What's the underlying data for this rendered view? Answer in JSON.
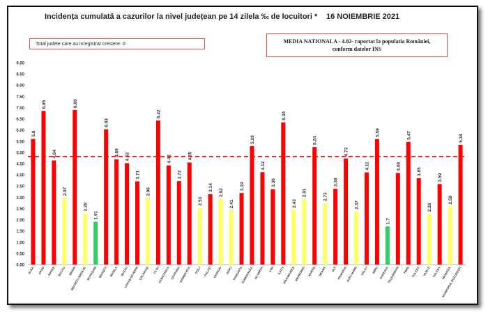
{
  "title": "Incidența cumulată a cazurilor la nivel județean pe 14 zilela ‰ de locuitori *",
  "date": "16 NOIEMBRIE 2021",
  "counter_text": "Total judete care au inregistrat crestere: 0",
  "media_line1": "MEDIA NATIONALA  - 4.82-  raportat la populatia României,",
  "media_line2": "conform datelor INS",
  "colors": {
    "red": "#ff0000",
    "yellow": "#ffff66",
    "green": "#33cc66",
    "reference": "#ff0000"
  },
  "chart_data": {
    "type": "bar",
    "ylim": [
      0,
      9
    ],
    "yticks": [
      "0.00",
      "0.50",
      "1.00",
      "1.50",
      "2.00",
      "2.50",
      "3.00",
      "3.50",
      "4.00",
      "4.50",
      "5.00",
      "5.50",
      "6.00",
      "6.50",
      "7.00",
      "7.50",
      "8.00",
      "8.50",
      "9.00"
    ],
    "reference_line": 4.82,
    "categories": [
      "ALBA",
      "ARAD",
      "ARGEȘ",
      "BACĂU",
      "BIHOR",
      "BISTRIȚA-NĂSĂUD",
      "BOTOȘANI",
      "BRAȘOV",
      "BRĂILA",
      "BUZĂU",
      "CARAȘ-SEVERIN",
      "CĂLĂRAȘI",
      "CLUJ",
      "CONSTANȚA",
      "COVASNA",
      "DÂMBOVIȚA",
      "DOLJ",
      "GALAȚI",
      "GIURGIU",
      "GORJ",
      "HARGHITA",
      "HUNEDOARA",
      "IALOMIȚA",
      "IAȘI",
      "ILFOV",
      "MARAMUREȘ",
      "MEHEDINȚI",
      "MUREȘ",
      "NEAMȚ",
      "OLT",
      "PRAHOVA",
      "SATU MARE",
      "SĂLAJ",
      "SIBIU",
      "SUCEAVA",
      "TELEORMAN",
      "TIMIȘ",
      "TULCEA",
      "VASLUI",
      "VÂLCEA",
      "VRANCEA",
      "MUNICIPIUL BUCUREȘTI"
    ],
    "values": [
      5.6,
      6.85,
      4.64,
      2.97,
      6.89,
      2.28,
      1.91,
      6.03,
      4.69,
      4.52,
      3.71,
      2.96,
      6.42,
      4.42,
      3.72,
      4.55,
      2.53,
      3.14,
      2.92,
      2.41,
      3.19,
      5.28,
      4.12,
      3.36,
      6.34,
      2.43,
      2.91,
      5.24,
      2.73,
      3.38,
      4.73,
      2.37,
      4.11,
      5.59,
      1.7,
      4.08,
      5.47,
      3.85,
      2.26,
      3.59,
      2.59,
      5.34
    ],
    "value_labels": [
      "5.6",
      "6.85",
      "4.64",
      "2.97",
      "6.89",
      "2.28",
      "1.91",
      "6.03",
      "4.69",
      "4.52",
      "3.71",
      "2.96",
      "6.42",
      "4.42",
      "3.72",
      "4.55",
      "2.53",
      "3.14",
      "2.92",
      "2.41",
      "3.19",
      "5.28",
      "4.12",
      "3.36",
      "6.34",
      "2.43",
      "2.91",
      "5.24",
      "2.73",
      "3.38",
      "4.73",
      "2.37",
      "4.11",
      "5.59",
      "1.7",
      "4.08",
      "5.47",
      "3.85",
      "2.26",
      "3.59",
      "2.59",
      "5.34"
    ],
    "bar_colors": [
      "red",
      "red",
      "red",
      "yellow",
      "red",
      "yellow",
      "green",
      "red",
      "red",
      "red",
      "red",
      "yellow",
      "red",
      "red",
      "red",
      "red",
      "yellow",
      "red",
      "yellow",
      "yellow",
      "red",
      "red",
      "red",
      "red",
      "red",
      "yellow",
      "yellow",
      "red",
      "yellow",
      "red",
      "red",
      "yellow",
      "red",
      "red",
      "green",
      "red",
      "red",
      "red",
      "yellow",
      "red",
      "yellow",
      "red"
    ]
  }
}
